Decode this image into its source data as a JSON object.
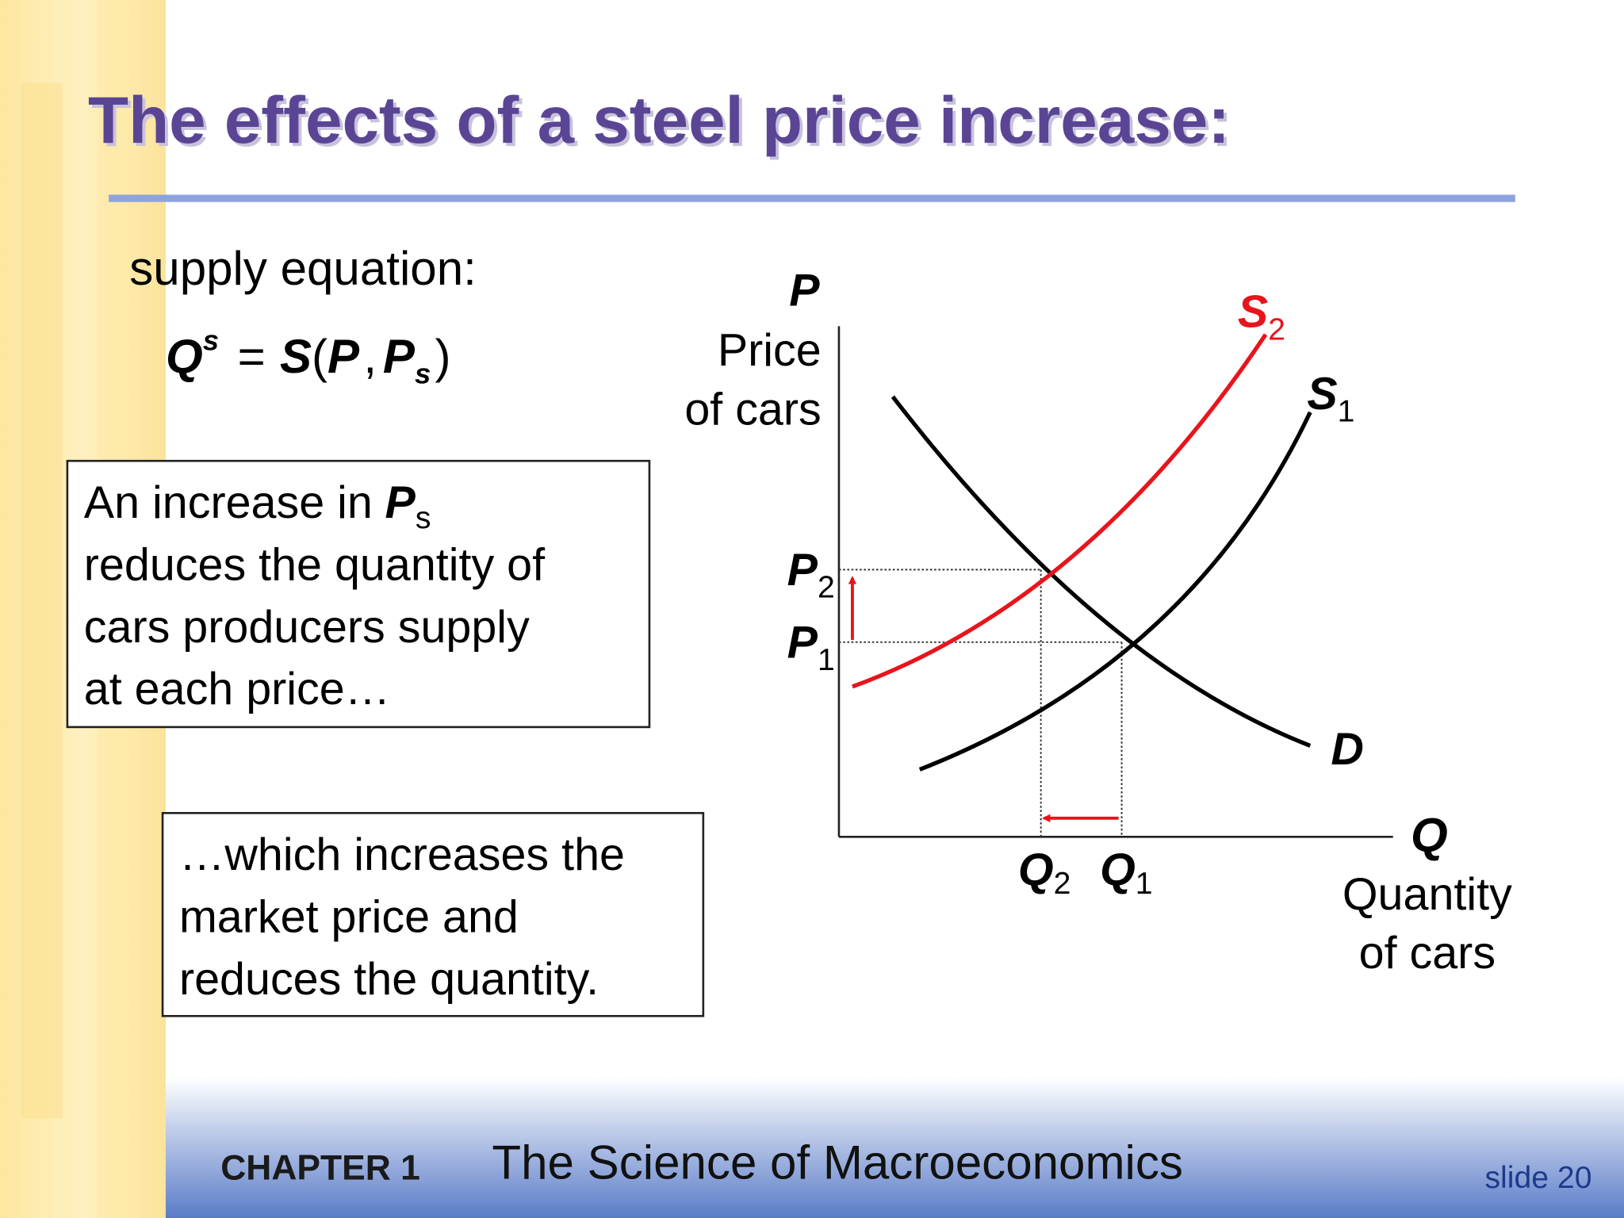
{
  "header": {
    "title": "The effects of a steel price increase:"
  },
  "equation": {
    "label": "supply equation:",
    "parts": [
      "Q",
      "s",
      "=",
      "S",
      "(",
      "P",
      ",",
      "P",
      "s",
      ")"
    ]
  },
  "box1": {
    "intro": "An increase in",
    "variable": "P",
    "subscript": "s",
    "lines": [
      "reduces the quantity of",
      "cars producers supply",
      "at each price…"
    ]
  },
  "box2": {
    "lines": [
      "…which increases the",
      "market price and",
      "reduces the quantity."
    ]
  },
  "graph": {
    "y_axis": {
      "symbol": "P",
      "label": [
        "Price",
        "of cars"
      ]
    },
    "x_axis": {
      "symbol": "Q",
      "label": [
        "Quantity",
        "of cars"
      ]
    },
    "curves": [
      {
        "symbol": "S",
        "subscript": "2"
      },
      {
        "symbol": "S",
        "subscript": "1"
      },
      {
        "symbol": "D"
      }
    ],
    "price_levels": [
      {
        "symbol": "P",
        "subscript": "2"
      },
      {
        "symbol": "P",
        "subscript": "1"
      }
    ],
    "quantity_levels": [
      {
        "symbol": "Q",
        "subscript": "2"
      },
      {
        "symbol": "Q",
        "subscript": "1"
      }
    ]
  },
  "footer": {
    "chapter": "CHAPTER 1",
    "title": "The Science of Macroeconomics",
    "slide": "slide 20"
  }
}
